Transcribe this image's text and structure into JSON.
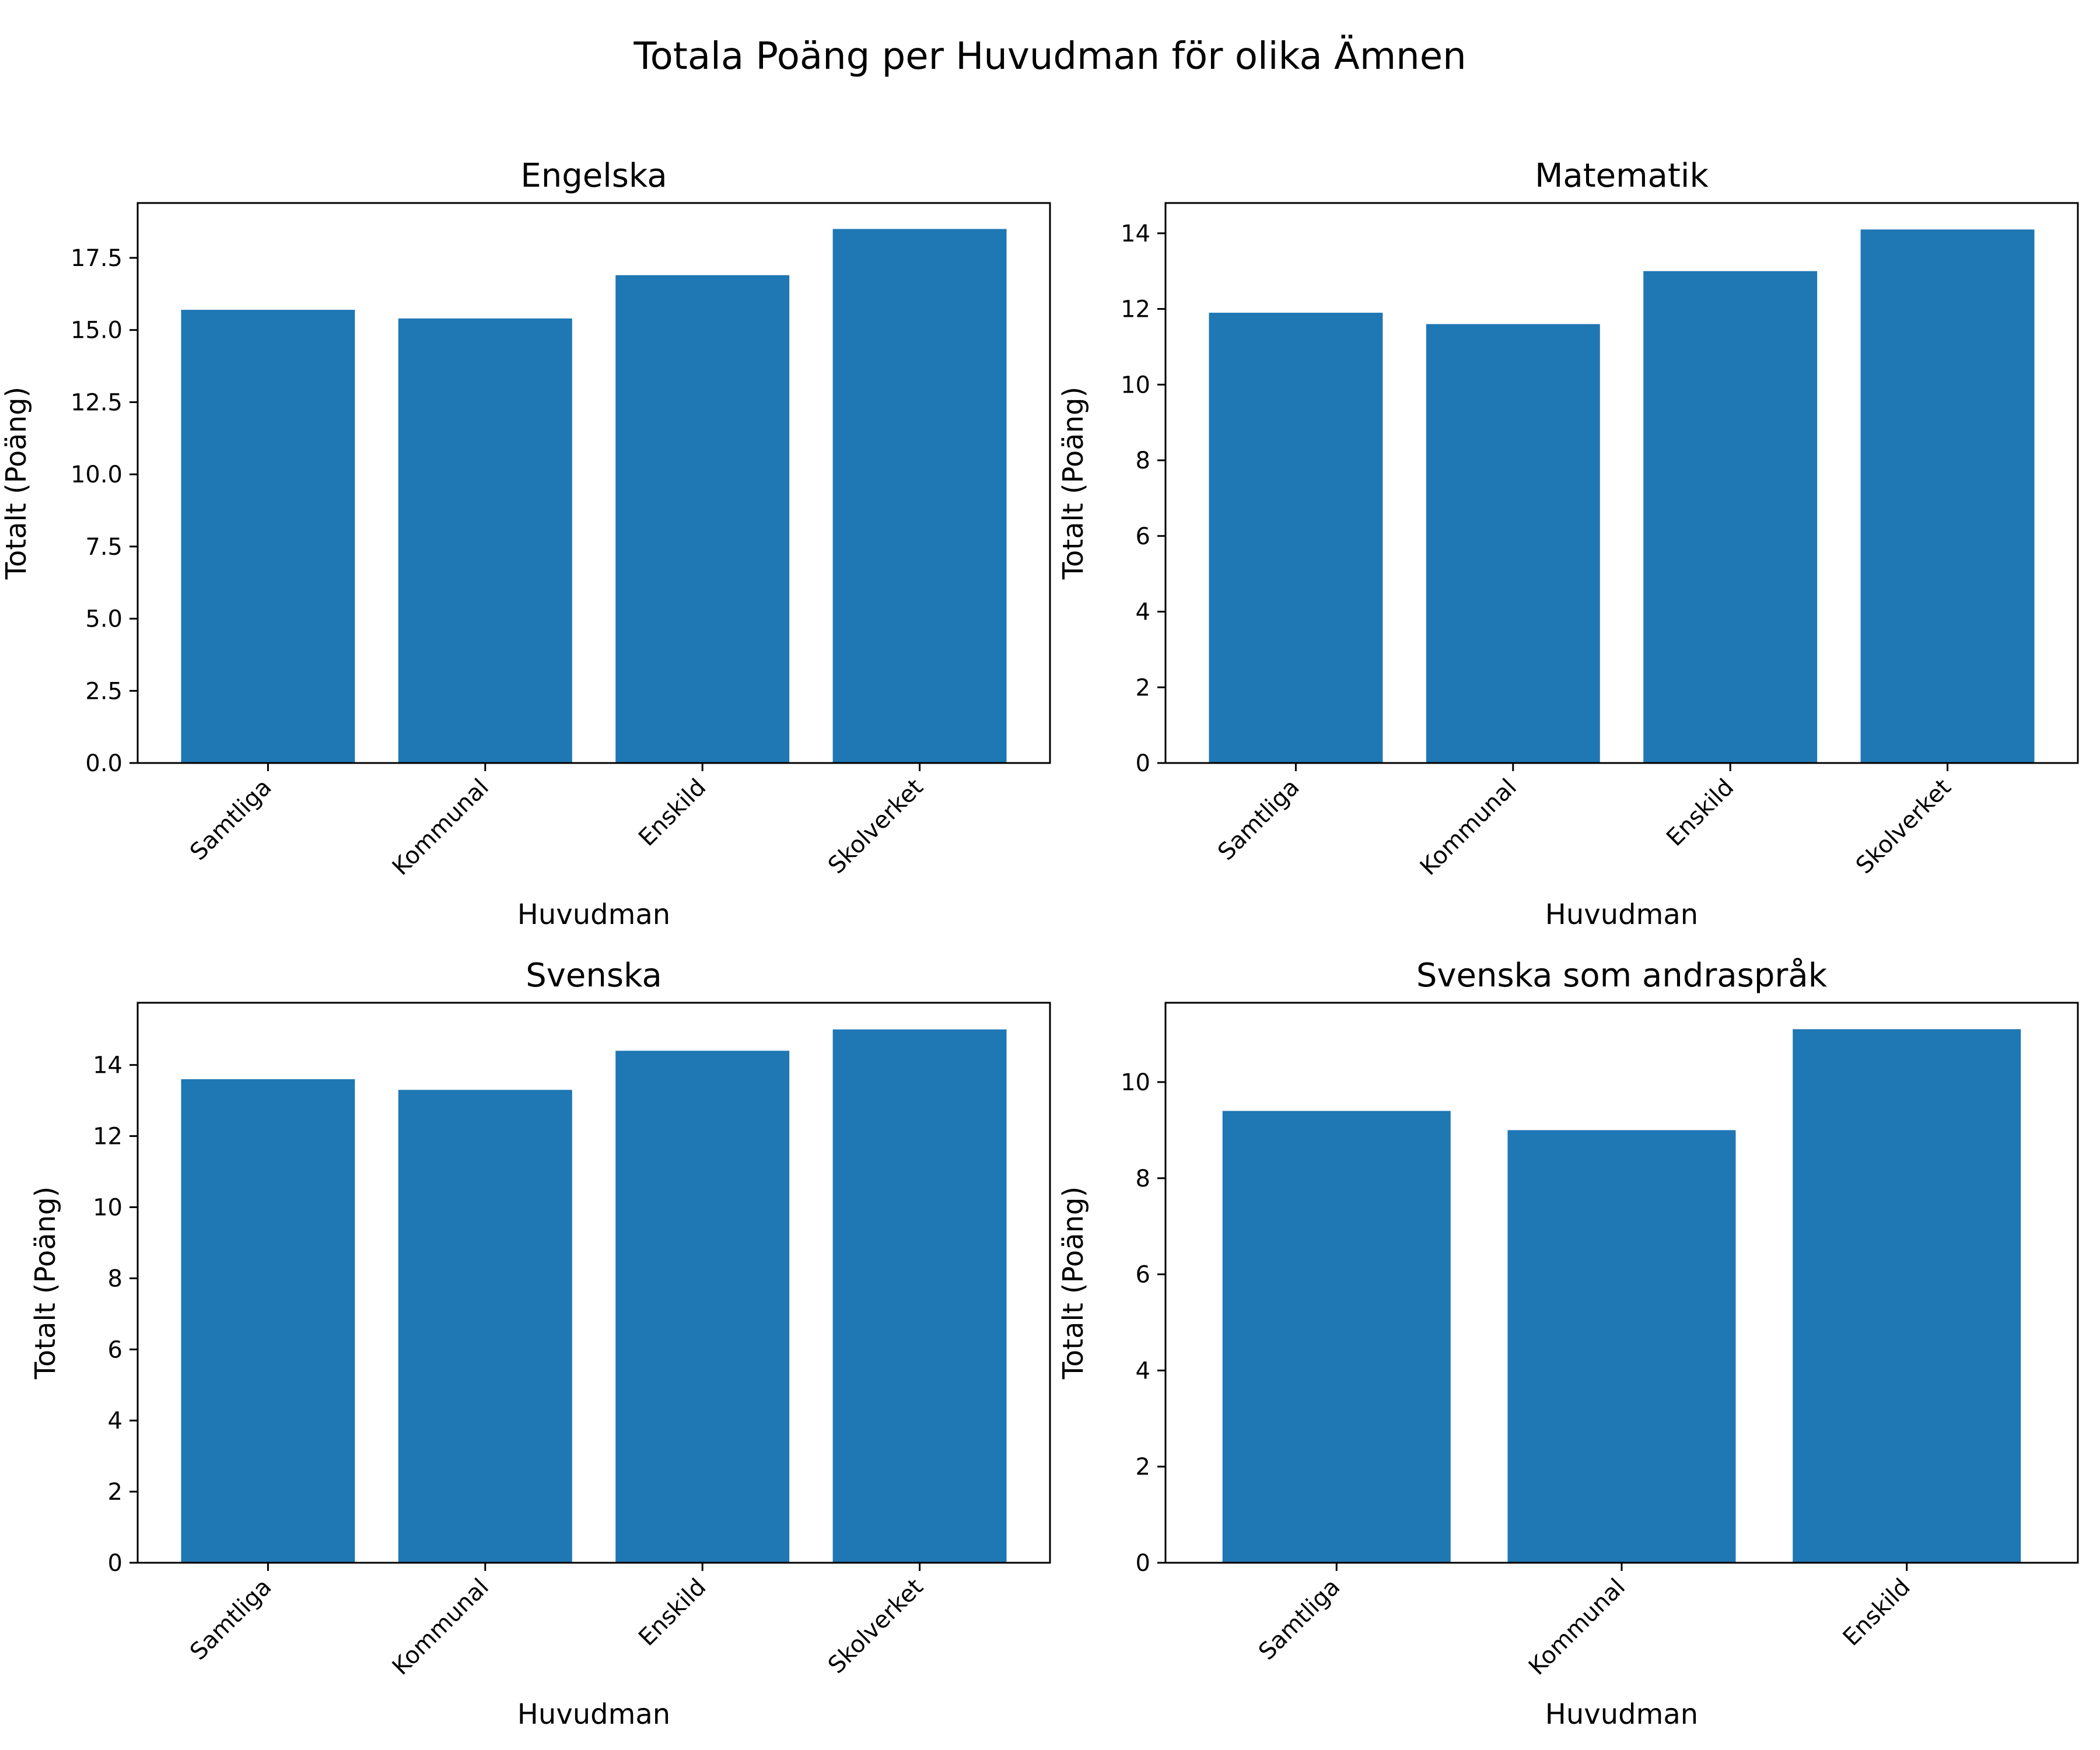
{
  "title": "Totala Poäng per Huvudman för olika Ämnen",
  "colors": {
    "bar": "#1f77b4"
  },
  "chart_data": [
    {
      "type": "bar",
      "title": "Engelska",
      "xlabel": "Huvudman",
      "ylabel": "Totalt (Poäng)",
      "categories": [
        "Samtliga",
        "Kommunal",
        "Enskild",
        "Skolverket"
      ],
      "values": [
        15.7,
        15.4,
        16.9,
        18.5
      ],
      "ylim": [
        0,
        19.4
      ],
      "yticks": [
        0,
        2.5,
        5,
        7.5,
        10,
        12.5,
        15,
        17.5
      ],
      "ytick_labels": [
        "0.0",
        "2.5",
        "5.0",
        "7.5",
        "10.0",
        "12.5",
        "15.0",
        "17.5"
      ],
      "grid": false
    },
    {
      "type": "bar",
      "title": "Matematik",
      "xlabel": "Huvudman",
      "ylabel": "Totalt (Poäng)",
      "categories": [
        "Samtliga",
        "Kommunal",
        "Enskild",
        "Skolverket"
      ],
      "values": [
        11.9,
        11.6,
        13.0,
        14.1
      ],
      "ylim": [
        0,
        14.8
      ],
      "yticks": [
        0,
        2,
        4,
        6,
        8,
        10,
        12,
        14
      ],
      "ytick_labels": [
        "0",
        "2",
        "4",
        "6",
        "8",
        "10",
        "12",
        "14"
      ],
      "grid": false
    },
    {
      "type": "bar",
      "title": "Svenska",
      "xlabel": "Huvudman",
      "ylabel": "Totalt (Poäng)",
      "categories": [
        "Samtliga",
        "Kommunal",
        "Enskild",
        "Skolverket"
      ],
      "values": [
        13.6,
        13.3,
        14.4,
        15.0
      ],
      "ylim": [
        0,
        15.75
      ],
      "yticks": [
        0,
        2,
        4,
        6,
        8,
        10,
        12,
        14
      ],
      "ytick_labels": [
        "0",
        "2",
        "4",
        "6",
        "8",
        "10",
        "12",
        "14"
      ],
      "grid": false
    },
    {
      "type": "bar",
      "title": "Svenska som andraspråk",
      "xlabel": "Huvudman",
      "ylabel": "Totalt (Poäng)",
      "categories": [
        "Samtliga",
        "Kommunal",
        "Enskild"
      ],
      "values": [
        9.4,
        9.0,
        11.1
      ],
      "ylim": [
        0,
        11.65
      ],
      "yticks": [
        0,
        2,
        4,
        6,
        8,
        10
      ],
      "ytick_labels": [
        "0",
        "2",
        "4",
        "6",
        "8",
        "10"
      ],
      "grid": false
    }
  ]
}
